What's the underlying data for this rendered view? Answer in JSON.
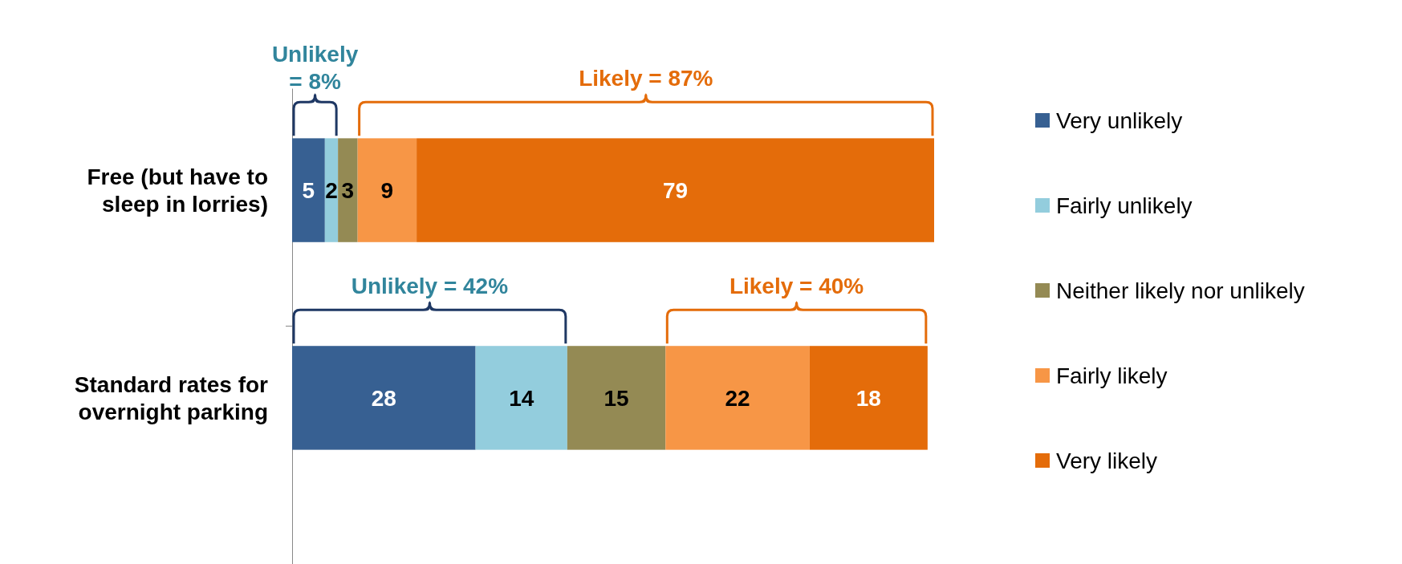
{
  "chart_data": {
    "type": "bar",
    "orientation": "horizontal",
    "stacked": true,
    "data_labels": true,
    "legend": "right",
    "categories": [
      "Free (but have to sleep in lorries)",
      "Standard rates for overnight parking"
    ],
    "series": [
      {
        "name": "Very unlikely",
        "color": "#376092",
        "values": [
          5,
          28
        ]
      },
      {
        "name": "Fairly unlikely",
        "color": "#93cddd",
        "values": [
          2,
          14
        ]
      },
      {
        "name": "Neither likely nor unlikely",
        "color": "#948a54",
        "values": [
          3,
          15
        ]
      },
      {
        "name": "Fairly likely",
        "color": "#f79646",
        "values": [
          9,
          22
        ]
      },
      {
        "name": "Very likely",
        "color": "#e46c0a",
        "values": [
          79,
          18
        ]
      }
    ],
    "annotations": [
      "Unlikely = 8%",
      "Likely = 87%",
      "Unlikely = 42%",
      "Likely = 40%"
    ]
  }
}
